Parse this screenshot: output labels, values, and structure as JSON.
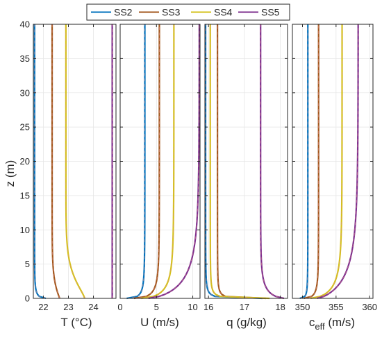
{
  "legend": {
    "entries": [
      {
        "name": "SS2",
        "color": "#0072BD"
      },
      {
        "name": "SS3",
        "color": "#A2571C"
      },
      {
        "name": "SS4",
        "color": "#D4C21A"
      },
      {
        "name": "SS5",
        "color": "#7E2F8E"
      }
    ],
    "location": "top-center"
  },
  "shared_y": {
    "label": "z (m)",
    "ticks": [
      "0",
      "5",
      "10",
      "15",
      "20",
      "25",
      "30",
      "35",
      "40"
    ],
    "ylim": [
      0,
      40
    ]
  },
  "panels_labels": {
    "T": {
      "main": "T (°C)",
      "sub": ""
    },
    "U": {
      "main": "U (m/s)",
      "sub": ""
    },
    "q": {
      "main": "q (g/kg)",
      "sub": ""
    },
    "c": {
      "main": "c",
      "sub": "eff",
      "tail": " (m/s)"
    }
  },
  "chart_data": [
    {
      "type": "line",
      "id": "T",
      "xlabel": "T (°C)",
      "xlim": [
        21.6,
        24.9
      ],
      "xticks": [
        "22",
        "23",
        "24"
      ],
      "xtick_values": [
        22,
        23,
        24
      ],
      "grid": true,
      "ylabel": "z (m)",
      "ylim": [
        0,
        40
      ],
      "series": [
        {
          "name": "SS2",
          "profile": {
            "top": 21.65,
            "bottom": 22.1,
            "depth": 2.5,
            "power": 0.6
          }
        },
        {
          "name": "SS3",
          "profile": {
            "top": 22.35,
            "bottom": 22.65,
            "depth": 7,
            "power": 1.1
          }
        },
        {
          "name": "SS4",
          "profile": {
            "top": 22.9,
            "bottom": 23.65,
            "depth": 9,
            "power": 1.3
          }
        },
        {
          "name": "SS5",
          "profile": {
            "top": 24.75,
            "bottom": 24.75,
            "depth": 1,
            "power": 1
          }
        }
      ]
    },
    {
      "type": "line",
      "id": "U",
      "xlabel": "U (m/s)",
      "xlim": [
        0,
        11
      ],
      "xticks": [
        "0",
        "5",
        "10"
      ],
      "xtick_values": [
        0,
        5,
        10
      ],
      "grid": true,
      "ylim": [
        0,
        40
      ],
      "series": [
        {
          "name": "SS2",
          "profile": {
            "top": 3.4,
            "bottom": 0.9,
            "depth": 4,
            "power": 0.5
          }
        },
        {
          "name": "SS3",
          "profile": {
            "top": 5.4,
            "bottom": 1.9,
            "depth": 5,
            "power": 0.55
          }
        },
        {
          "name": "SS4",
          "profile": {
            "top": 7.4,
            "bottom": 2.9,
            "depth": 7,
            "power": 0.6
          }
        },
        {
          "name": "SS5",
          "profile": {
            "top": 10.9,
            "bottom": 3.9,
            "depth": 12,
            "power": 0.7
          }
        }
      ]
    },
    {
      "type": "line",
      "id": "q",
      "xlabel": "q (g/kg)",
      "xlim": [
        15.9,
        18.2
      ],
      "xticks": [
        "16",
        "17",
        "18"
      ],
      "xtick_values": [
        16,
        17,
        18
      ],
      "grid": true,
      "ylim": [
        0,
        40
      ],
      "series": [
        {
          "name": "SS2",
          "profile": {
            "top": 15.92,
            "bottom": 17.5,
            "depth": 1.2,
            "power": 0.4
          }
        },
        {
          "name": "SS3",
          "profile": {
            "top": 16.25,
            "bottom": 17.6,
            "depth": 1.2,
            "power": 0.4
          }
        },
        {
          "name": "SS4",
          "profile": {
            "top": 16.05,
            "bottom": 17.7,
            "depth": 1.2,
            "power": 0.4
          }
        },
        {
          "name": "SS5",
          "profile": {
            "top": 17.45,
            "bottom": 18.1,
            "depth": 5,
            "power": 0.7
          }
        }
      ]
    },
    {
      "type": "line",
      "id": "c",
      "xlabel": "c_eff (m/s)",
      "xlim": [
        348.5,
        360.5
      ],
      "xticks": [
        "350",
        "355",
        "360"
      ],
      "xtick_values": [
        350,
        355,
        360
      ],
      "grid": true,
      "ylim": [
        0,
        40
      ],
      "series": [
        {
          "name": "SS2",
          "profile": {
            "top": 350.8,
            "bottom": 349.6,
            "depth": 3,
            "power": 0.5
          }
        },
        {
          "name": "SS3",
          "profile": {
            "top": 352.4,
            "bottom": 350.2,
            "depth": 4,
            "power": 0.55
          }
        },
        {
          "name": "SS4",
          "profile": {
            "top": 355.9,
            "bottom": 351.2,
            "depth": 8,
            "power": 0.65
          }
        },
        {
          "name": "SS5",
          "profile": {
            "top": 358.3,
            "bottom": 352.2,
            "depth": 14,
            "power": 0.75
          }
        }
      ]
    }
  ]
}
